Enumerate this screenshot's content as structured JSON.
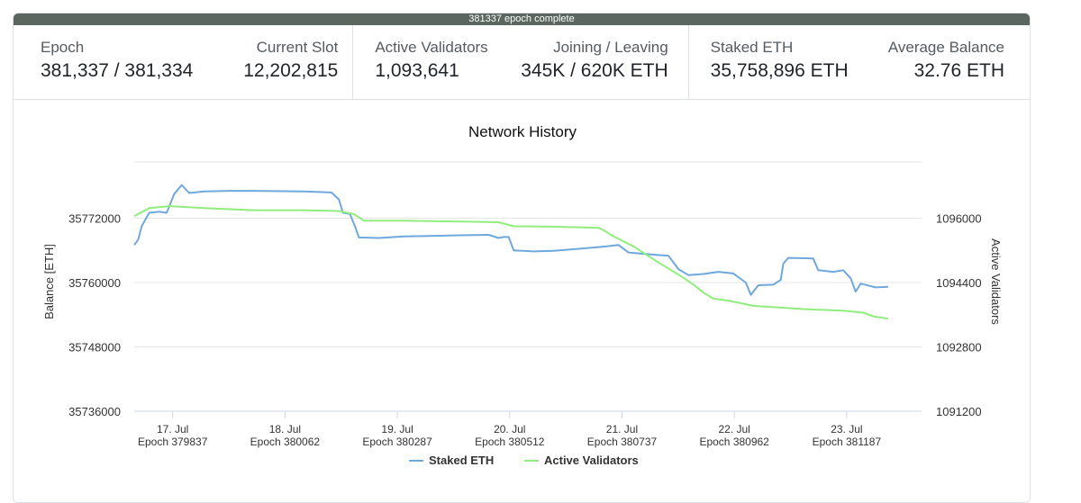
{
  "banner": {
    "text": "381337 epoch complete"
  },
  "stats": {
    "epoch": {
      "label": "Epoch",
      "value": "381,337 / 381,334"
    },
    "current_slot": {
      "label": "Current Slot",
      "value": "12,202,815"
    },
    "active_validators": {
      "label": "Active Validators",
      "value": "1,093,641"
    },
    "joining_leaving": {
      "label": "Joining / Leaving",
      "value": "345K / 620K ETH"
    },
    "staked_eth": {
      "label": "Staked ETH",
      "value": "35,758,896 ETH"
    },
    "average_balance": {
      "label": "Average Balance",
      "value": "32.76 ETH"
    }
  },
  "colors": {
    "staked": "#6fa8dc",
    "validators": "#90ed7d",
    "grid": "#e6e6e6",
    "banner": "#5b6661"
  },
  "chart_data": {
    "type": "line",
    "title": "Network History",
    "x_ticks": [
      {
        "day": "17. Jul",
        "epoch": "Epoch 379837",
        "x": 379837
      },
      {
        "day": "18. Jul",
        "epoch": "Epoch 380062",
        "x": 380062
      },
      {
        "day": "19. Jul",
        "epoch": "Epoch 380287",
        "x": 380287
      },
      {
        "day": "20. Jul",
        "epoch": "Epoch 380512",
        "x": 380512
      },
      {
        "day": "21. Jul",
        "epoch": "Epoch 380737",
        "x": 380737
      },
      {
        "day": "22. Jul",
        "epoch": "Epoch 380962",
        "x": 380962
      },
      {
        "day": "23. Jul",
        "epoch": "Epoch 381187",
        "x": 381187
      }
    ],
    "xlim": [
      379760,
      381337
    ],
    "y_left": {
      "label": "Balance [ETH]",
      "ticks": [
        35736000,
        35748000,
        35760000,
        35772000
      ],
      "range": [
        35736000,
        35784000
      ]
    },
    "y_right": {
      "label": "Active Validators",
      "ticks": [
        1091200,
        1092800,
        1094400,
        1096000
      ],
      "range": [
        1091200,
        1097600
      ]
    },
    "legend": "bottom-center",
    "series": [
      {
        "name": "Staked ETH",
        "axis": "left",
        "points": [
          [
            379760,
            35767000
          ],
          [
            379768,
            35768000
          ],
          [
            379775,
            35770500
          ],
          [
            379790,
            35773000
          ],
          [
            379810,
            35773200
          ],
          [
            379825,
            35773000
          ],
          [
            379840,
            35776500
          ],
          [
            379855,
            35778200
          ],
          [
            379870,
            35776700
          ],
          [
            379900,
            35777000
          ],
          [
            379950,
            35777100
          ],
          [
            380000,
            35777100
          ],
          [
            380100,
            35777000
          ],
          [
            380155,
            35776800
          ],
          [
            380170,
            35775500
          ],
          [
            380178,
            35773000
          ],
          [
            380192,
            35772800
          ],
          [
            380202,
            35770500
          ],
          [
            380210,
            35768400
          ],
          [
            380250,
            35768300
          ],
          [
            380300,
            35768600
          ],
          [
            380350,
            35768700
          ],
          [
            380400,
            35768800
          ],
          [
            380470,
            35768900
          ],
          [
            380490,
            35768300
          ],
          [
            380500,
            35768500
          ],
          [
            380510,
            35768500
          ],
          [
            380520,
            35766000
          ],
          [
            380560,
            35765800
          ],
          [
            380600,
            35765900
          ],
          [
            380650,
            35766300
          ],
          [
            380700,
            35766700
          ],
          [
            380730,
            35767000
          ],
          [
            380750,
            35765600
          ],
          [
            380800,
            35765200
          ],
          [
            380830,
            35765000
          ],
          [
            380850,
            35762500
          ],
          [
            380870,
            35761400
          ],
          [
            380900,
            35761600
          ],
          [
            380930,
            35762000
          ],
          [
            380960,
            35761700
          ],
          [
            380985,
            35760000
          ],
          [
            380995,
            35757700
          ],
          [
            381010,
            35759500
          ],
          [
            381040,
            35759600
          ],
          [
            381055,
            35760500
          ],
          [
            381060,
            35763500
          ],
          [
            381070,
            35764600
          ],
          [
            381120,
            35764500
          ],
          [
            381130,
            35762300
          ],
          [
            381160,
            35762000
          ],
          [
            381180,
            35762300
          ],
          [
            381195,
            35760800
          ],
          [
            381205,
            35758300
          ],
          [
            381215,
            35759800
          ],
          [
            381245,
            35759100
          ],
          [
            381270,
            35759200
          ]
        ]
      },
      {
        "name": "Active Validators",
        "axis": "right",
        "points": [
          [
            379760,
            1096050
          ],
          [
            379790,
            1096250
          ],
          [
            379830,
            1096300
          ],
          [
            379900,
            1096250
          ],
          [
            380000,
            1096200
          ],
          [
            380100,
            1096200
          ],
          [
            380170,
            1096180
          ],
          [
            380200,
            1096100
          ],
          [
            380220,
            1095940
          ],
          [
            380300,
            1095940
          ],
          [
            380400,
            1095920
          ],
          [
            380490,
            1095900
          ],
          [
            380520,
            1095800
          ],
          [
            380600,
            1095790
          ],
          [
            380690,
            1095760
          ],
          [
            380700,
            1095700
          ],
          [
            380720,
            1095550
          ],
          [
            380760,
            1095300
          ],
          [
            380810,
            1094900
          ],
          [
            380850,
            1094600
          ],
          [
            380880,
            1094350
          ],
          [
            380900,
            1094150
          ],
          [
            380920,
            1094000
          ],
          [
            380950,
            1093950
          ],
          [
            381000,
            1093820
          ],
          [
            381100,
            1093740
          ],
          [
            381180,
            1093700
          ],
          [
            381220,
            1093650
          ],
          [
            381240,
            1093560
          ],
          [
            381270,
            1093500
          ]
        ]
      }
    ]
  }
}
